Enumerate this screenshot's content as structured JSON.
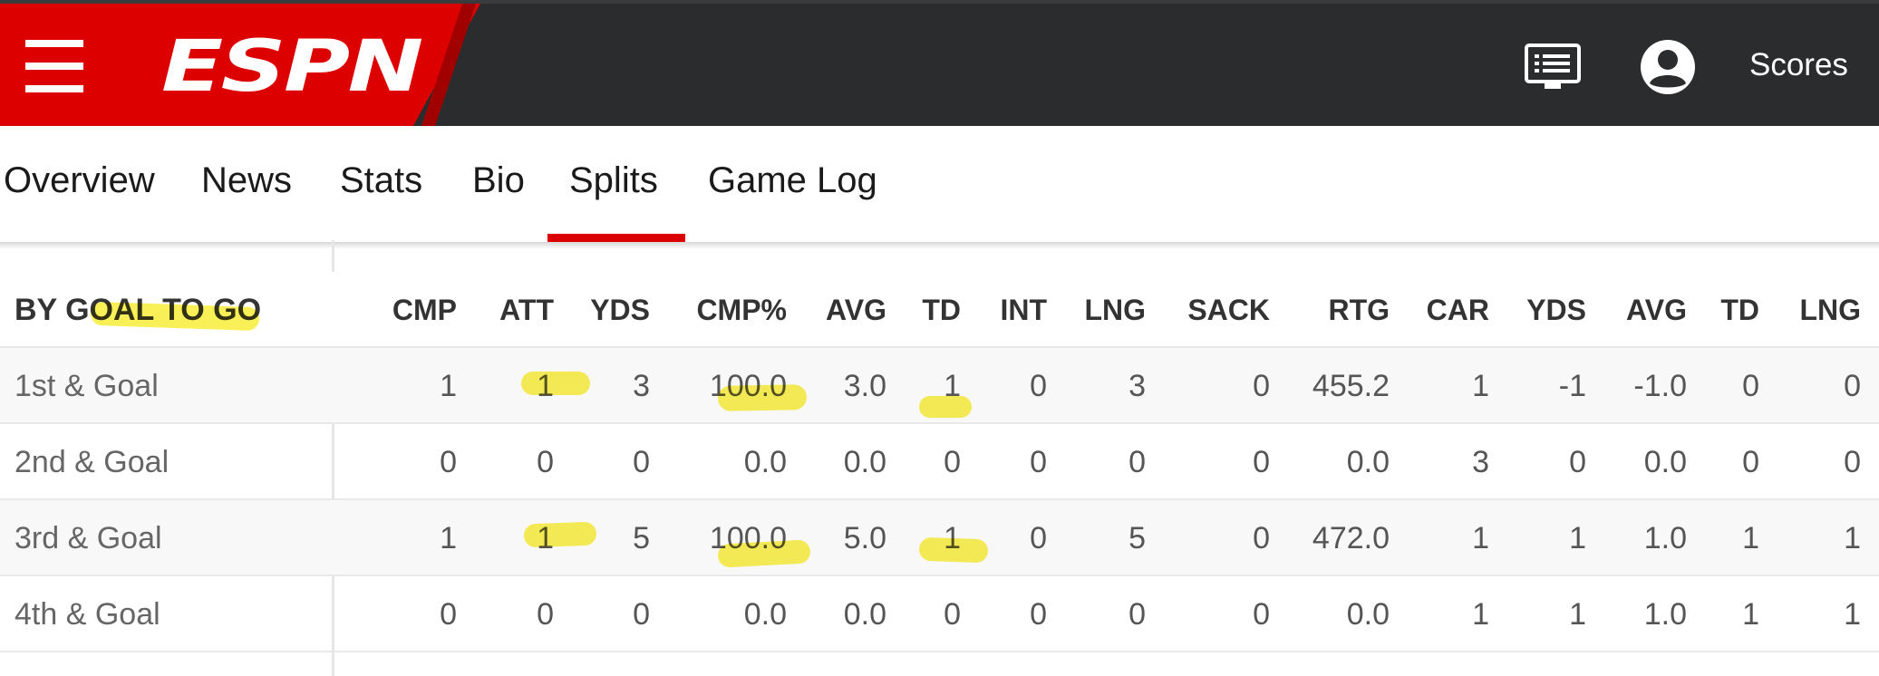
{
  "header": {
    "logo_text": "ESPN",
    "scores_label": "Scores",
    "icons": [
      "menu-icon",
      "watch-list-icon",
      "user-icon"
    ],
    "brand_color": "#dd0000",
    "bar_color": "#2b2c2d"
  },
  "tabs": [
    {
      "label": "Overview"
    },
    {
      "label": "News"
    },
    {
      "label": "Stats"
    },
    {
      "label": "Bio"
    },
    {
      "label": "Splits",
      "active": true
    },
    {
      "label": "Game Log"
    }
  ],
  "table": {
    "section_title": "BY GOAL TO GO",
    "columns": [
      "CMP",
      "ATT",
      "YDS",
      "CMP%",
      "AVG",
      "TD",
      "INT",
      "LNG",
      "SACK",
      "RTG",
      "CAR",
      "YDS",
      "AVG",
      "TD",
      "LNG"
    ],
    "rows": [
      {
        "label": "1st & Goal",
        "values": [
          "1",
          "1",
          "3",
          "100.0",
          "3.0",
          "1",
          "0",
          "3",
          "0",
          "455.2",
          "1",
          "-1",
          "-1.0",
          "0",
          "0"
        ]
      },
      {
        "label": "2nd & Goal",
        "values": [
          "0",
          "0",
          "0",
          "0.0",
          "0.0",
          "0",
          "0",
          "0",
          "0",
          "0.0",
          "3",
          "0",
          "0.0",
          "0",
          "0"
        ]
      },
      {
        "label": "3rd & Goal",
        "values": [
          "1",
          "1",
          "5",
          "100.0",
          "5.0",
          "1",
          "0",
          "5",
          "0",
          "472.0",
          "1",
          "1",
          "1.0",
          "1",
          "1"
        ]
      },
      {
        "label": "4th & Goal",
        "values": [
          "0",
          "0",
          "0",
          "0.0",
          "0.0",
          "0",
          "0",
          "0",
          "0",
          "0.0",
          "1",
          "1",
          "1.0",
          "1",
          "1"
        ]
      }
    ],
    "highlight_color": "#f7ec28"
  }
}
